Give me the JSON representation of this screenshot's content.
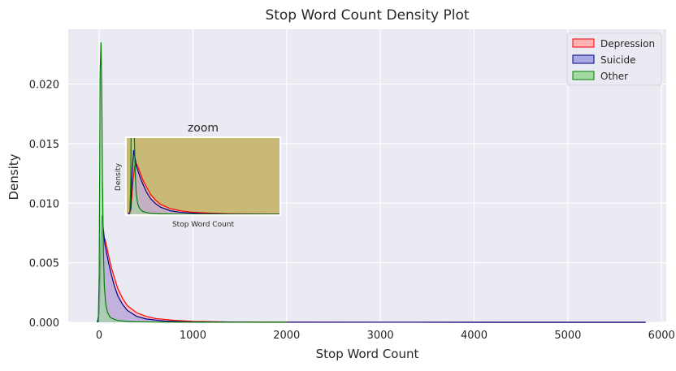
{
  "chart_data": {
    "type": "area",
    "title": "Stop Word Count Density Plot",
    "xlabel": "Stop Word Count",
    "ylabel": "Density",
    "xlim": [
      -330,
      6050
    ],
    "ylim": [
      0,
      0.0246
    ],
    "xticks": [
      0,
      1000,
      2000,
      3000,
      4000,
      5000,
      6000
    ],
    "yticks": [
      0.0,
      0.005,
      0.01,
      0.015,
      0.02
    ],
    "ytick_labels": [
      "0.000",
      "0.005",
      "0.010",
      "0.015",
      "0.020"
    ],
    "grid": true,
    "legend_position": "top-right",
    "series": [
      {
        "name": "Depression",
        "edge": "#ff0000",
        "fill": "#ffb3b3",
        "x": [
          -20,
          0,
          20,
          40,
          60,
          80,
          100,
          130,
          160,
          200,
          250,
          300,
          400,
          500,
          600,
          800,
          1000,
          1400,
          2000,
          3000,
          5830
        ],
        "y": [
          0,
          0.0005,
          0.0042,
          0.0068,
          0.007,
          0.0064,
          0.0056,
          0.0046,
          0.0038,
          0.0028,
          0.002,
          0.0014,
          0.0008,
          0.0005,
          0.00032,
          0.00016,
          8e-05,
          3e-05,
          1e-05,
          4e-06,
          0
        ]
      },
      {
        "name": "Suicide",
        "edge": "#00008b",
        "fill": "#a9a9e6",
        "x": [
          -20,
          0,
          15,
          30,
          45,
          60,
          80,
          100,
          130,
          160,
          200,
          250,
          300,
          400,
          500,
          700,
          1000,
          1500,
          2500,
          4000,
          5830
        ],
        "y": [
          0,
          0.0008,
          0.006,
          0.009,
          0.0078,
          0.0066,
          0.0058,
          0.005,
          0.004,
          0.0031,
          0.0022,
          0.0015,
          0.001,
          0.0005,
          0.00028,
          0.0001,
          3e-05,
          1e-05,
          4e-06,
          2e-06,
          0
        ]
      },
      {
        "name": "Other",
        "edge": "#008000",
        "fill": "#a3d9a3",
        "x": [
          -10,
          0,
          10,
          20,
          28,
          35,
          45,
          55,
          70,
          90,
          120,
          160,
          200,
          300,
          400,
          600,
          1000,
          1500,
          2000
        ],
        "y": [
          0,
          0.004,
          0.021,
          0.0235,
          0.019,
          0.012,
          0.006,
          0.003,
          0.0015,
          0.0008,
          0.0004,
          0.00025,
          0.00015,
          7e-05,
          4e-05,
          2e-05,
          8e-06,
          3e-06,
          0
        ]
      }
    ],
    "inset": {
      "title": "zoom",
      "xlabel": "Stop Word Count",
      "ylabel": "Density",
      "background": "#c9b977",
      "xlim": [
        -40,
        1500
      ],
      "ylim": [
        0,
        0.0107
      ]
    }
  }
}
